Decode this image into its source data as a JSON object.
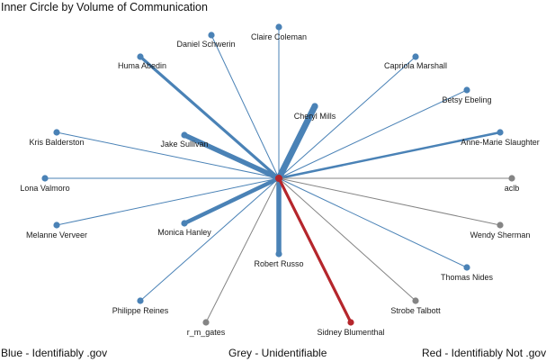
{
  "title": "Inner Circle by Volume of Communication",
  "colors": {
    "blue": "#4a82b6",
    "grey": "#858585",
    "red": "#b5262c"
  },
  "center": {
    "color": "red"
  },
  "nodes": [
    {
      "name": "Claire Coleman",
      "color": "blue",
      "weight": 1
    },
    {
      "name": "Daniel Schwerin",
      "color": "blue",
      "weight": 1
    },
    {
      "name": "Huma Abedin",
      "color": "blue",
      "weight": 3
    },
    {
      "name": "Capriola Marshall",
      "color": "blue",
      "weight": 1
    },
    {
      "name": "Betsy Ebeling",
      "color": "blue",
      "weight": 1
    },
    {
      "name": "Cheryl Mills",
      "color": "blue",
      "weight": 6
    },
    {
      "name": "Kris Balderston",
      "color": "blue",
      "weight": 1
    },
    {
      "name": "Jake Sullivan",
      "color": "blue",
      "weight": 5
    },
    {
      "name": "Anne-Marie Slaughter",
      "color": "blue",
      "weight": 2
    },
    {
      "name": "Lona Valmoro",
      "color": "blue",
      "weight": 1
    },
    {
      "name": "aclb",
      "color": "grey",
      "weight": 1
    },
    {
      "name": "Melanne Verveer",
      "color": "blue",
      "weight": 1
    },
    {
      "name": "Monica Hanley",
      "color": "blue",
      "weight": 4
    },
    {
      "name": "Wendy Sherman",
      "color": "grey",
      "weight": 1
    },
    {
      "name": "Robert Russo",
      "color": "blue",
      "weight": 5
    },
    {
      "name": "Thomas Nides",
      "color": "blue",
      "weight": 1
    },
    {
      "name": "Philippe Reines",
      "color": "blue",
      "weight": 1
    },
    {
      "name": "Strobe Talbott",
      "color": "grey",
      "weight": 1
    },
    {
      "name": "r_m_gates",
      "color": "grey",
      "weight": 1
    },
    {
      "name": "Sidney Blumenthal",
      "color": "red",
      "weight": 3
    }
  ],
  "legend": {
    "blue": "Blue - Identifiably .gov",
    "grey": "Grey - Unidentifiable",
    "red": "Red - Identifiably Not .gov"
  }
}
